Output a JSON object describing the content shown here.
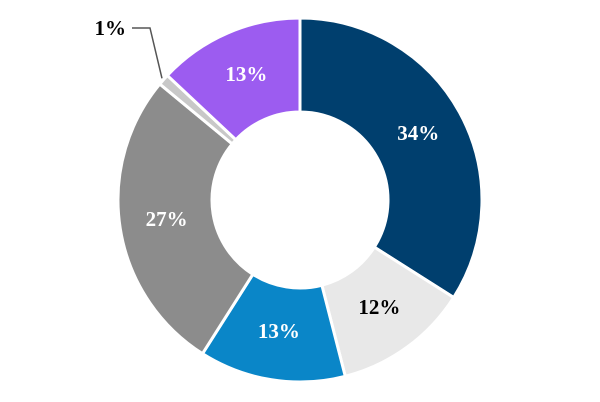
{
  "chart_data": {
    "type": "donut",
    "values": [
      34,
      12,
      13,
      27,
      1,
      13
    ],
    "value_labels": [
      "34%",
      "12%",
      "13%",
      "27%",
      "1%",
      "13%"
    ],
    "colors": [
      "#003f6e",
      "#e8e8e8",
      "#0a86c8",
      "#8c8c8c",
      "#c8c8c8",
      "#9c5cf0"
    ],
    "label_colors": [
      "#ffffff",
      "#000000",
      "#ffffff",
      "#ffffff",
      "#000000",
      "#ffffff"
    ]
  }
}
